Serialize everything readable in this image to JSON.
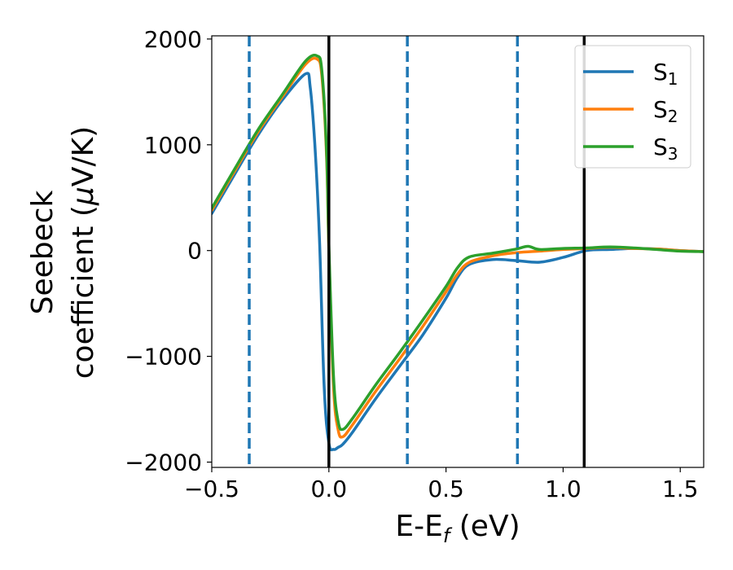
{
  "chart_data": {
    "type": "line",
    "xlabel": "E-E",
    "xlabel_sub": "f",
    "xlabel_unit": " (eV)",
    "ylabel_line1": "Seebeck",
    "ylabel_line2": "coefficient  (",
    "ylabel_mu": "μ",
    "ylabel_unit_end": "V/K)",
    "xlim": [
      -0.5,
      1.6
    ],
    "ylim": [
      -2050,
      2030
    ],
    "xticks": [
      -0.5,
      0.0,
      0.5,
      1.0,
      1.5
    ],
    "xtick_labels": [
      "−0.5",
      "0.0",
      "0.5",
      "1.0",
      "1.5"
    ],
    "yticks": [
      -2000,
      -1000,
      0,
      1000,
      2000
    ],
    "ytick_labels": [
      "−2000",
      "−1000",
      "0",
      "1000",
      "2000"
    ],
    "grid": false,
    "legend_position": "top-right",
    "vlines_solid": [
      0.0,
      1.09
    ],
    "vlines_dashed": [
      -0.34,
      0.335,
      0.805
    ],
    "vline_solid_color": "#000000",
    "vline_dashed_color": "#1f77b4",
    "series": [
      {
        "name": "S",
        "sub": "1",
        "color": "#1f77b4",
        "x": [
          -0.5,
          -0.4,
          -0.3,
          -0.2,
          -0.1,
          -0.08,
          -0.06,
          -0.04,
          -0.02,
          0.0,
          0.02,
          0.04,
          0.06,
          0.1,
          0.2,
          0.3,
          0.4,
          0.5,
          0.55,
          0.6,
          0.7,
          0.8,
          0.9,
          1.0,
          1.1,
          1.2,
          1.3,
          1.4,
          1.5,
          1.6
        ],
        "y": [
          350,
          730,
          1100,
          1420,
          1670,
          1550,
          1000,
          100,
          -1300,
          -1820,
          -1880,
          -1860,
          -1830,
          -1720,
          -1400,
          -1100,
          -800,
          -450,
          -250,
          -130,
          -85,
          -95,
          -110,
          -65,
          0,
          10,
          20,
          15,
          0,
          -10
        ]
      },
      {
        "name": "S",
        "sub": "2",
        "color": "#ff7f0e",
        "x": [
          -0.5,
          -0.4,
          -0.3,
          -0.2,
          -0.1,
          -0.05,
          -0.03,
          -0.01,
          0.0,
          0.02,
          0.04,
          0.06,
          0.1,
          0.2,
          0.3,
          0.4,
          0.5,
          0.55,
          0.6,
          0.7,
          0.8,
          0.9,
          1.0,
          1.1,
          1.2,
          1.3,
          1.4,
          1.5,
          1.6
        ],
        "y": [
          380,
          760,
          1130,
          1450,
          1760,
          1810,
          1650,
          900,
          0,
          -1300,
          -1700,
          -1760,
          -1650,
          -1330,
          -1030,
          -720,
          -390,
          -220,
          -110,
          -50,
          -20,
          -5,
          10,
          20,
          30,
          20,
          15,
          0,
          -10
        ]
      },
      {
        "name": "S",
        "sub": "3",
        "color": "#2ca02c",
        "x": [
          -0.5,
          -0.4,
          -0.3,
          -0.2,
          -0.1,
          -0.05,
          -0.03,
          -0.01,
          0.0,
          0.02,
          0.04,
          0.06,
          0.1,
          0.2,
          0.3,
          0.4,
          0.5,
          0.55,
          0.6,
          0.7,
          0.8,
          0.85,
          0.9,
          1.0,
          1.1,
          1.2,
          1.3,
          1.4,
          1.5,
          1.6
        ],
        "y": [
          400,
          780,
          1150,
          1470,
          1790,
          1840,
          1700,
          950,
          50,
          -1200,
          -1620,
          -1690,
          -1590,
          -1270,
          -970,
          -660,
          -340,
          -160,
          -60,
          -25,
          15,
          40,
          10,
          20,
          25,
          35,
          25,
          10,
          -5,
          -10
        ]
      }
    ]
  }
}
